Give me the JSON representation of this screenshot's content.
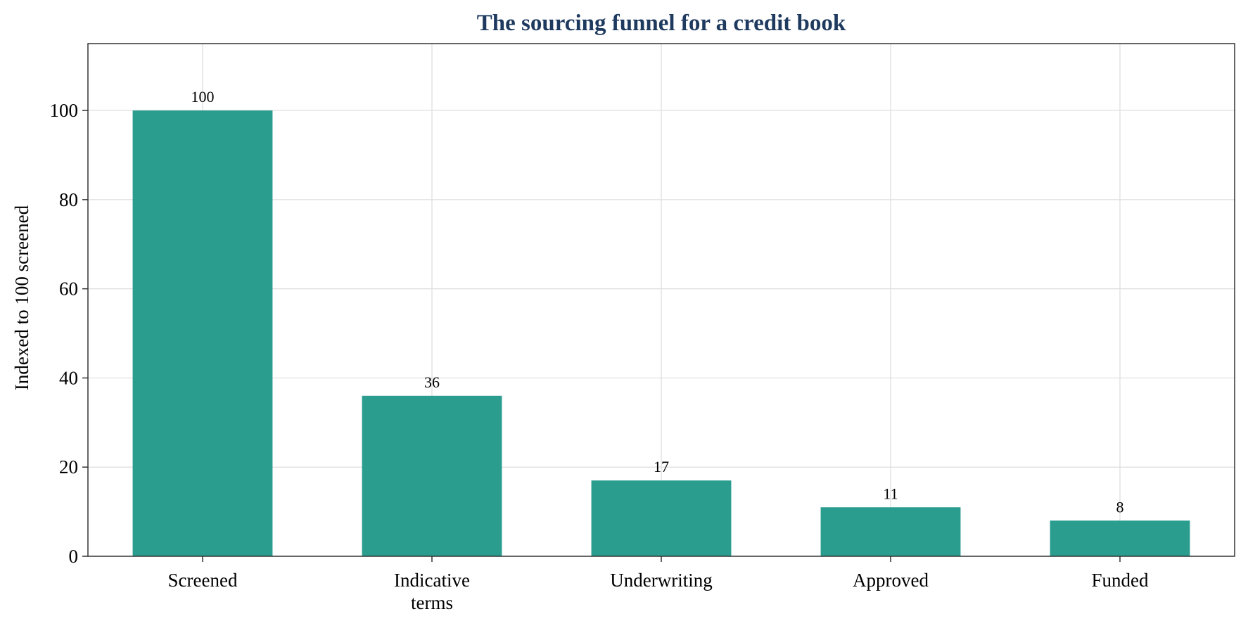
{
  "colors": {
    "bar": "#2a9d8f",
    "title": "#1f3a5f",
    "axis": "#333333",
    "grid": "#dddddd"
  },
  "chart_data": {
    "type": "bar",
    "title": "The sourcing funnel for a credit book",
    "xlabel": "",
    "ylabel": "Indexed to 100 screened",
    "categories": [
      "Screened",
      "Indicative\nterms",
      "Underwriting",
      "Approved",
      "Funded"
    ],
    "values": [
      100,
      36,
      17,
      11,
      8
    ],
    "data_labels": [
      "100",
      "36",
      "17",
      "11",
      "8"
    ],
    "ylim": [
      0,
      115
    ],
    "yticks": [
      0,
      20,
      40,
      60,
      80,
      100
    ],
    "grid": true,
    "legend": "none"
  }
}
